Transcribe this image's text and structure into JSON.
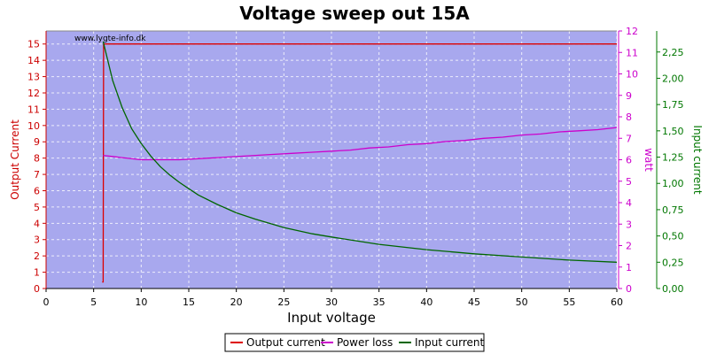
{
  "chart_data": {
    "type": "line",
    "title": "Voltage sweep  out 15A",
    "watermark": "www.lygte-info.dk",
    "xlabel": "Input voltage",
    "xlim": [
      0,
      60
    ],
    "xticks": [
      "0",
      "5",
      "10",
      "15",
      "20",
      "25",
      "30",
      "35",
      "40",
      "45",
      "50",
      "55",
      "60"
    ],
    "axes": {
      "left": {
        "label": "Output Current",
        "color": "#cc0000",
        "lim": [
          0,
          15.8
        ],
        "ticks": [
          "0",
          "1",
          "2",
          "3",
          "4",
          "5",
          "6",
          "7",
          "8",
          "9",
          "10",
          "11",
          "12",
          "13",
          "14",
          "15"
        ]
      },
      "right1": {
        "label": "watt",
        "color": "#cc00cc",
        "lim": [
          0,
          12
        ],
        "ticks": [
          "0",
          "1",
          "2",
          "3",
          "4",
          "5",
          "6",
          "7",
          "8",
          "9",
          "10",
          "11",
          "12"
        ]
      },
      "right2": {
        "label": "Input current",
        "color": "#007700",
        "lim": [
          0,
          2.45
        ],
        "ticks": [
          "0,00",
          "0,25",
          "0,50",
          "0,75",
          "1,00",
          "1,25",
          "1,50",
          "1,75",
          "2,00",
          "2,25"
        ]
      }
    },
    "series": [
      {
        "name": "Output current",
        "axis": "left",
        "color": "#dd0000",
        "points": [
          [
            5.9,
            0.4
          ],
          [
            6.0,
            0.4
          ],
          [
            6.05,
            15.0
          ],
          [
            20,
            15.0
          ],
          [
            40,
            15.0
          ],
          [
            60,
            15.0
          ]
        ]
      },
      {
        "name": "Power loss",
        "axis": "right1",
        "color": "#cc00cc",
        "points": [
          [
            6,
            6.2
          ],
          [
            8,
            6.1
          ],
          [
            10,
            6.0
          ],
          [
            12,
            6.0
          ],
          [
            14,
            6.0
          ],
          [
            16,
            6.05
          ],
          [
            18,
            6.1
          ],
          [
            20,
            6.15
          ],
          [
            22,
            6.2
          ],
          [
            24,
            6.25
          ],
          [
            26,
            6.3
          ],
          [
            28,
            6.35
          ],
          [
            30,
            6.4
          ],
          [
            32,
            6.45
          ],
          [
            34,
            6.55
          ],
          [
            36,
            6.6
          ],
          [
            38,
            6.7
          ],
          [
            40,
            6.75
          ],
          [
            42,
            6.85
          ],
          [
            44,
            6.9
          ],
          [
            46,
            7.0
          ],
          [
            48,
            7.05
          ],
          [
            50,
            7.15
          ],
          [
            52,
            7.2
          ],
          [
            54,
            7.3
          ],
          [
            56,
            7.35
          ],
          [
            58,
            7.4
          ],
          [
            60,
            7.5
          ]
        ]
      },
      {
        "name": "Input current",
        "axis": "right2",
        "color": "#006600",
        "points": [
          [
            6,
            2.35
          ],
          [
            7,
            1.98
          ],
          [
            8,
            1.72
          ],
          [
            9,
            1.52
          ],
          [
            10,
            1.38
          ],
          [
            11,
            1.26
          ],
          [
            12,
            1.16
          ],
          [
            13,
            1.08
          ],
          [
            14,
            1.01
          ],
          [
            15,
            0.95
          ],
          [
            16,
            0.89
          ],
          [
            18,
            0.8
          ],
          [
            20,
            0.72
          ],
          [
            22,
            0.66
          ],
          [
            25,
            0.58
          ],
          [
            28,
            0.52
          ],
          [
            30,
            0.49
          ],
          [
            35,
            0.42
          ],
          [
            40,
            0.37
          ],
          [
            45,
            0.33
          ],
          [
            50,
            0.3
          ],
          [
            55,
            0.27
          ],
          [
            60,
            0.25
          ]
        ]
      }
    ],
    "legend": {
      "position": "bottom-center",
      "entries": [
        "Output current",
        "Power loss",
        "Input current"
      ]
    },
    "plot_background": "#a8a8ee",
    "grid": true
  }
}
